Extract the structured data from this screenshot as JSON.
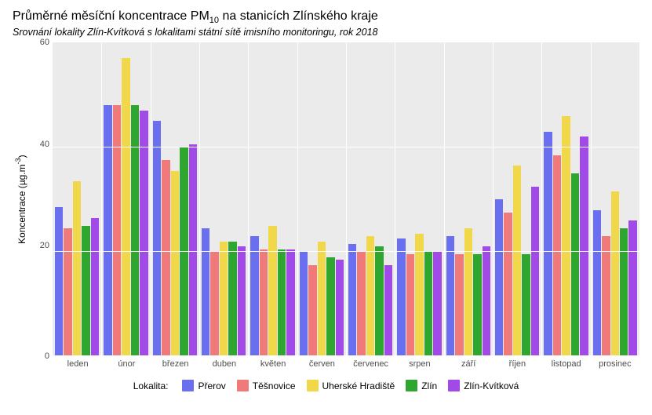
{
  "title_prefix": "Průměrné měsíční koncentrace PM",
  "title_sub": "10",
  "title_suffix": " na stanicích Zlínského kraje",
  "subtitle": "Srovnání lokality Zlín-Kvítková s lokalitami státní sítě imisního monitoringu, rok 2018",
  "ylabel_prefix": "Koncentrace (µg.m",
  "ylabel_sup": "-3",
  "ylabel_suffix": ")",
  "legend_title": "Lokalita:",
  "chart": {
    "type": "bar",
    "background": "#ebebeb",
    "grid_color": "#ffffff",
    "ylim": [
      0,
      60
    ],
    "yticks": [
      0,
      20,
      40,
      60
    ],
    "categories": [
      "leden",
      "únor",
      "březen",
      "duben",
      "květen",
      "červen",
      "červenec",
      "srpen",
      "září",
      "říjen",
      "listopad",
      "prosinec"
    ],
    "series": [
      {
        "name": "Přerov",
        "color": "#6a6ff0",
        "values": [
          28.5,
          48,
          45,
          24.5,
          23,
          20,
          21.5,
          22.5,
          23,
          30,
          43,
          28
        ]
      },
      {
        "name": "Těšnovice",
        "color": "#f07a7a",
        "values": [
          24.5,
          48,
          37.5,
          20,
          20.5,
          17.5,
          20,
          19.5,
          19.5,
          27.5,
          38.5,
          23
        ]
      },
      {
        "name": "Uherské Hradiště",
        "color": "#f0d84a",
        "values": [
          33.5,
          57,
          35.5,
          22,
          25,
          22,
          23,
          23.5,
          24.5,
          36.5,
          46,
          31.5
        ]
      },
      {
        "name": "Zlín",
        "color": "#2fa62f",
        "values": [
          25,
          48,
          40,
          22,
          20.5,
          19,
          21,
          20,
          19.5,
          19.5,
          35,
          24.5
        ]
      },
      {
        "name": "Zlín-Kvítková",
        "color": "#a24ae8",
        "values": [
          26.5,
          47,
          40.5,
          21,
          20.5,
          18.5,
          17.5,
          20,
          21,
          32.5,
          42,
          26
        ]
      }
    ]
  }
}
